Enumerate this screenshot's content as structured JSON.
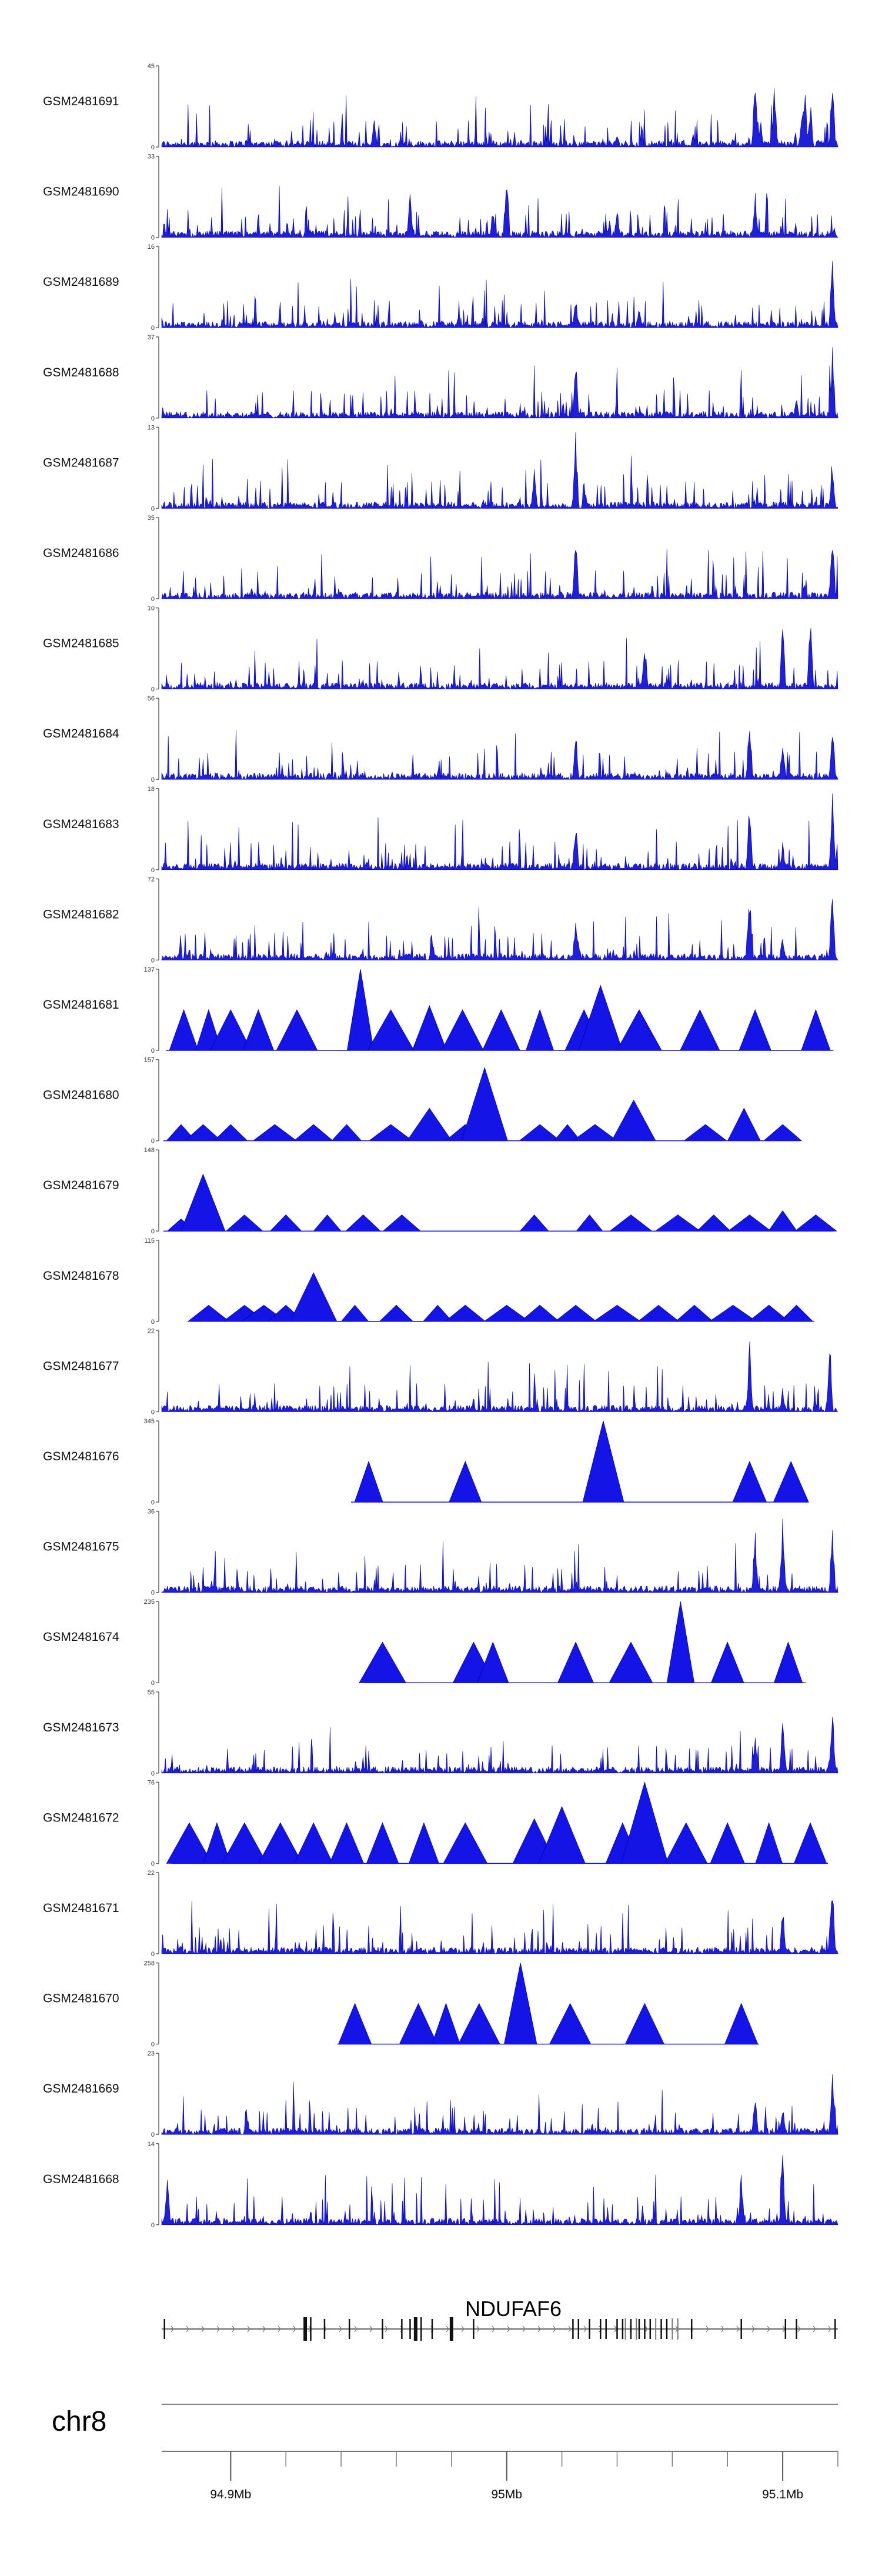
{
  "chart_data": {
    "type": "area",
    "title": "",
    "xlabel": "",
    "ylabel": "",
    "chromosome": "chr8",
    "xlim": [
      94.875,
      95.12
    ],
    "x_units": "Mb",
    "genome_axis_ticks": [
      {
        "value": 94.9,
        "label": "94.9Mb"
      },
      {
        "value": 95.0,
        "label": "95Mb"
      },
      {
        "value": 95.1,
        "label": "95.1Mb"
      }
    ],
    "gene": {
      "name": "NDUFAF6",
      "strand": "+",
      "start": 94.875,
      "end": 95.12
    },
    "tracks": [
      {
        "name": "GSM2481691",
        "ymax": 45,
        "style": "dense",
        "peaks": [
          [
            95.09,
            0.92
          ],
          [
            95.092,
            0.4
          ],
          [
            95.097,
            0.82
          ],
          [
            95.107,
            0.45
          ],
          [
            95.108,
            0.85
          ],
          [
            95.11,
            0.6
          ],
          [
            95.118,
            1.0
          ],
          [
            94.952,
            0.35
          ],
          [
            95.04,
            0.2
          ]
        ]
      },
      {
        "name": "GSM2481690",
        "ymax": 33,
        "style": "dense",
        "peaks": [
          [
            95.0,
            1.0
          ],
          [
            94.965,
            0.55
          ],
          [
            95.09,
            0.62
          ],
          [
            94.995,
            0.4
          ],
          [
            95.04,
            0.38
          ]
        ]
      },
      {
        "name": "GSM2481689",
        "ymax": 16,
        "style": "dense",
        "peaks": [
          [
            95.118,
            1.0
          ],
          [
            95.025,
            0.4
          ],
          [
            95.048,
            0.3
          ]
        ]
      },
      {
        "name": "GSM2481688",
        "ymax": 37,
        "style": "dense",
        "peaks": [
          [
            95.025,
            0.85
          ],
          [
            95.118,
            1.0
          ],
          [
            95.105,
            0.25
          ]
        ]
      },
      {
        "name": "GSM2481687",
        "ymax": 13,
        "style": "dense",
        "peaks": [
          [
            95.025,
            1.0
          ],
          [
            95.118,
            0.7
          ],
          [
            95.01,
            0.55
          ]
        ]
      },
      {
        "name": "GSM2481686",
        "ymax": 35,
        "style": "dense",
        "peaks": [
          [
            95.025,
            0.95
          ],
          [
            95.118,
            1.0
          ],
          [
            95.108,
            0.2
          ]
        ]
      },
      {
        "name": "GSM2481685",
        "ymax": 10,
        "style": "dense",
        "peaks": [
          [
            95.11,
            1.0
          ],
          [
            95.1,
            0.9
          ],
          [
            95.05,
            0.7
          ]
        ]
      },
      {
        "name": "GSM2481684",
        "ymax": 56,
        "style": "dense",
        "peaks": [
          [
            95.025,
            0.65
          ],
          [
            95.088,
            0.95
          ],
          [
            95.1,
            0.6
          ],
          [
            95.118,
            0.85
          ]
        ]
      },
      {
        "name": "GSM2481683",
        "ymax": 18,
        "style": "dense",
        "peaks": [
          [
            95.025,
            0.7
          ],
          [
            95.088,
            0.9
          ],
          [
            95.118,
            1.0
          ],
          [
            95.1,
            0.35
          ]
        ]
      },
      {
        "name": "GSM2481682",
        "ymax": 72,
        "style": "dense",
        "peaks": [
          [
            95.025,
            0.55
          ],
          [
            95.088,
            0.95
          ],
          [
            95.1,
            0.35
          ],
          [
            95.118,
            1.0
          ]
        ]
      },
      {
        "name": "GSM2481681",
        "ymax": 137,
        "style": "sparse",
        "gap": [
          95.0,
          95.0
        ],
        "peaks": [
          [
            94.883,
            0.5
          ],
          [
            94.892,
            0.5
          ],
          [
            94.9,
            0.5
          ],
          [
            94.91,
            0.5
          ],
          [
            94.924,
            0.5
          ],
          [
            94.947,
            1.0
          ],
          [
            94.958,
            0.5
          ],
          [
            94.972,
            0.55
          ],
          [
            94.984,
            0.5
          ],
          [
            94.998,
            0.5
          ],
          [
            95.012,
            0.5
          ],
          [
            95.028,
            0.5
          ],
          [
            95.034,
            0.8
          ],
          [
            95.048,
            0.5
          ],
          [
            95.07,
            0.5
          ],
          [
            95.09,
            0.5
          ],
          [
            95.112,
            0.5
          ]
        ]
      },
      {
        "name": "GSM2481680",
        "ymax": 157,
        "style": "sparse",
        "peaks": [
          [
            94.882,
            0.2
          ],
          [
            94.89,
            0.2
          ],
          [
            94.9,
            0.2
          ],
          [
            94.916,
            0.2
          ],
          [
            94.93,
            0.2
          ],
          [
            94.942,
            0.2
          ],
          [
            94.958,
            0.2
          ],
          [
            94.972,
            0.4
          ],
          [
            94.985,
            0.2
          ],
          [
            94.992,
            0.9
          ],
          [
            95.012,
            0.2
          ],
          [
            95.022,
            0.2
          ],
          [
            95.032,
            0.2
          ],
          [
            95.046,
            0.5
          ],
          [
            95.072,
            0.2
          ],
          [
            95.086,
            0.4
          ],
          [
            95.1,
            0.2
          ]
        ]
      },
      {
        "name": "GSM2481679",
        "ymax": 148,
        "style": "sparse",
        "peaks": [
          [
            94.882,
            0.15
          ],
          [
            94.89,
            0.7
          ],
          [
            94.905,
            0.2
          ],
          [
            94.92,
            0.2
          ],
          [
            94.935,
            0.2
          ],
          [
            94.948,
            0.2
          ],
          [
            94.962,
            0.2
          ],
          [
            95.01,
            0.2
          ],
          [
            95.03,
            0.2
          ],
          [
            95.045,
            0.2
          ],
          [
            95.062,
            0.2
          ],
          [
            95.075,
            0.2
          ],
          [
            95.088,
            0.2
          ],
          [
            95.1,
            0.25
          ],
          [
            95.112,
            0.2
          ]
        ]
      },
      {
        "name": "GSM2481678",
        "ymax": 115,
        "style": "sparse",
        "peaks": [
          [
            94.892,
            0.2
          ],
          [
            94.905,
            0.2
          ],
          [
            94.912,
            0.2
          ],
          [
            94.92,
            0.2
          ],
          [
            94.93,
            0.6
          ],
          [
            94.945,
            0.2
          ],
          [
            94.96,
            0.2
          ],
          [
            94.975,
            0.2
          ],
          [
            94.985,
            0.2
          ],
          [
            95.0,
            0.2
          ],
          [
            95.012,
            0.2
          ],
          [
            95.025,
            0.2
          ],
          [
            95.04,
            0.2
          ],
          [
            95.055,
            0.2
          ],
          [
            95.068,
            0.2
          ],
          [
            95.082,
            0.2
          ],
          [
            95.095,
            0.2
          ],
          [
            95.105,
            0.2
          ]
        ]
      },
      {
        "name": "GSM2481677",
        "ymax": 22,
        "style": "dense",
        "peaks": [
          [
            95.088,
            0.9
          ],
          [
            95.1,
            0.3
          ],
          [
            95.117,
            1.0
          ]
        ]
      },
      {
        "name": "GSM2481676",
        "ymax": 345,
        "style": "sparse",
        "peaks": [
          [
            94.95,
            0.5
          ],
          [
            94.985,
            0.5
          ],
          [
            95.035,
            1.0
          ],
          [
            95.088,
            0.5
          ],
          [
            95.103,
            0.5
          ]
        ]
      },
      {
        "name": "GSM2481675",
        "ymax": 36,
        "style": "dense",
        "peaks": [
          [
            95.09,
            0.8
          ],
          [
            95.1,
            1.0
          ],
          [
            95.118,
            0.9
          ]
        ]
      },
      {
        "name": "GSM2481674",
        "ymax": 235,
        "style": "sparse",
        "peaks": [
          [
            94.955,
            0.5
          ],
          [
            94.988,
            0.5
          ],
          [
            94.995,
            0.5
          ],
          [
            95.025,
            0.5
          ],
          [
            95.045,
            0.5
          ],
          [
            95.063,
            1.0
          ],
          [
            95.08,
            0.5
          ],
          [
            95.102,
            0.5
          ]
        ]
      },
      {
        "name": "GSM2481673",
        "ymax": 55,
        "style": "dense",
        "peaks": [
          [
            95.09,
            0.5
          ],
          [
            95.1,
            0.75
          ],
          [
            95.118,
            1.0
          ]
        ]
      },
      {
        "name": "GSM2481672",
        "ymax": 76,
        "style": "sparse",
        "peaks": [
          [
            94.885,
            0.5
          ],
          [
            94.895,
            0.5
          ],
          [
            94.905,
            0.5
          ],
          [
            94.918,
            0.5
          ],
          [
            94.93,
            0.5
          ],
          [
            94.942,
            0.5
          ],
          [
            94.955,
            0.5
          ],
          [
            94.97,
            0.5
          ],
          [
            94.985,
            0.5
          ],
          [
            95.01,
            0.55
          ],
          [
            95.02,
            0.7
          ],
          [
            95.042,
            0.5
          ],
          [
            95.05,
            1.0
          ],
          [
            95.065,
            0.5
          ],
          [
            95.08,
            0.5
          ],
          [
            95.095,
            0.5
          ],
          [
            95.11,
            0.5
          ]
        ]
      },
      {
        "name": "GSM2481671",
        "ymax": 22,
        "style": "dense",
        "peaks": [
          [
            95.118,
            1.0
          ],
          [
            95.1,
            0.65
          ]
        ]
      },
      {
        "name": "GSM2481670",
        "ymax": 258,
        "style": "sparse",
        "peaks": [
          [
            94.945,
            0.5
          ],
          [
            94.968,
            0.5
          ],
          [
            94.978,
            0.5
          ],
          [
            94.99,
            0.5
          ],
          [
            95.005,
            1.0
          ],
          [
            95.023,
            0.5
          ],
          [
            95.05,
            0.5
          ],
          [
            95.085,
            0.5
          ]
        ]
      },
      {
        "name": "GSM2481669",
        "ymax": 23,
        "style": "dense",
        "peaks": [
          [
            95.118,
            1.0
          ],
          [
            95.09,
            0.55
          ],
          [
            95.1,
            0.4
          ]
        ]
      },
      {
        "name": "GSM2481668",
        "ymax": 14,
        "style": "dense",
        "peaks": [
          [
            95.1,
            1.0
          ],
          [
            95.085,
            0.7
          ],
          [
            94.877,
            0.7
          ]
        ]
      }
    ]
  }
}
